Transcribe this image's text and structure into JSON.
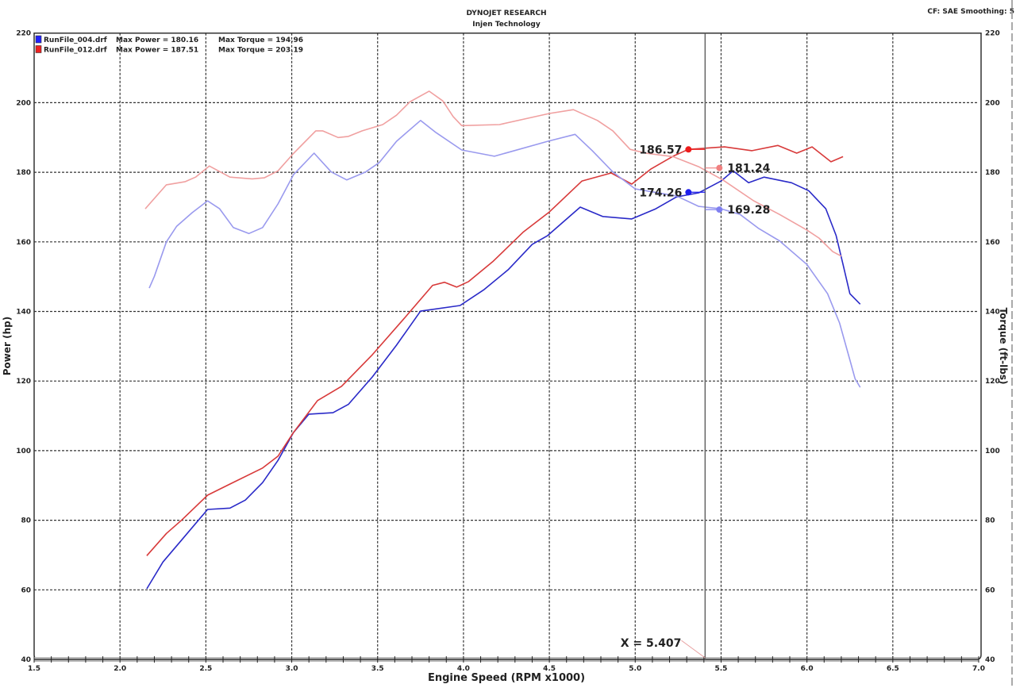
{
  "header": {
    "title": "DYNOJET RESEARCH",
    "subtitle": "Injen Technology",
    "settings": "CF: SAE  Smoothing: 5"
  },
  "legend": [
    {
      "file": "RunFile_004.drf",
      "power_text": "Max Power = 180.16",
      "torque_text": "Max Torque = 194.96",
      "color": "#2020ff"
    },
    {
      "file": "RunFile_012.drf",
      "power_text": "Max Power = 187.51",
      "torque_text": "Max Torque = 203.19",
      "color": "#ee2020"
    }
  ],
  "cursor": {
    "label": "X = 5.407",
    "x": 5.407
  },
  "chart_data": {
    "type": "line",
    "title": "DYNOJET RESEARCH",
    "subtitle": "Injen Technology",
    "xlabel": "Engine Speed (RPM x1000)",
    "ylabel": "Power (hp)",
    "ylabel_right": "Torque (ft-lbs)",
    "xlim": [
      1.5,
      7.0
    ],
    "ylim": [
      40,
      220
    ],
    "ylim_right": [
      40,
      220
    ],
    "x_ticks": [
      "1.5",
      "2.0",
      "2.5",
      "3.0",
      "3.5",
      "4.0",
      "4.5",
      "5.0",
      "5.5",
      "6.0",
      "6.5",
      "7.0"
    ],
    "y_ticks": [
      "220",
      "200",
      "180",
      "160",
      "140",
      "120",
      "100",
      "80",
      "60",
      "40"
    ],
    "grid": true,
    "legend_position": "top-left",
    "series": [
      {
        "name": "RunFile_004.drf Power",
        "color": "#2a2ac8",
        "axis": "left",
        "points": [
          [
            2.156,
            60.3
          ],
          [
            2.25,
            68
          ],
          [
            2.36,
            74.4
          ],
          [
            2.51,
            83.1
          ],
          [
            2.64,
            83.5
          ],
          [
            2.73,
            85.8
          ],
          [
            2.83,
            90.8
          ],
          [
            2.92,
            97.2
          ],
          [
            3.01,
            105.2
          ],
          [
            3.1,
            110.5
          ],
          [
            3.24,
            110.9
          ],
          [
            3.33,
            113.3
          ],
          [
            3.47,
            121.2
          ],
          [
            3.61,
            130.3
          ],
          [
            3.75,
            140.1
          ],
          [
            3.98,
            141.7
          ],
          [
            4.12,
            146.3
          ],
          [
            4.26,
            152
          ],
          [
            4.4,
            159.3
          ],
          [
            4.49,
            161.8
          ],
          [
            4.68,
            170
          ],
          [
            4.81,
            167.3
          ],
          [
            4.98,
            166.6
          ],
          [
            5.12,
            169.5
          ],
          [
            5.24,
            172.9
          ],
          [
            5.37,
            174.1
          ],
          [
            5.5,
            177.5
          ],
          [
            5.57,
            180.4
          ],
          [
            5.66,
            177
          ],
          [
            5.75,
            178.6
          ],
          [
            5.91,
            177
          ],
          [
            6.01,
            174.7
          ],
          [
            6.11,
            169.5
          ],
          [
            6.17,
            161.8
          ],
          [
            6.21,
            153.5
          ],
          [
            6.25,
            145.1
          ],
          [
            6.31,
            142.1
          ]
        ]
      },
      {
        "name": "RunFile_012.drf Power",
        "color": "#d83a3a",
        "axis": "left",
        "points": [
          [
            2.156,
            69.8
          ],
          [
            2.27,
            76.2
          ],
          [
            2.36,
            80.1
          ],
          [
            2.51,
            87.2
          ],
          [
            2.64,
            90.4
          ],
          [
            2.83,
            95
          ],
          [
            2.92,
            98.4
          ],
          [
            3.01,
            105.2
          ],
          [
            3.15,
            114.4
          ],
          [
            3.29,
            118.5
          ],
          [
            3.47,
            127.6
          ],
          [
            3.66,
            138.3
          ],
          [
            3.82,
            147.5
          ],
          [
            3.89,
            148.4
          ],
          [
            3.96,
            147
          ],
          [
            4.03,
            148.6
          ],
          [
            4.17,
            154.3
          ],
          [
            4.35,
            162.9
          ],
          [
            4.5,
            168.6
          ],
          [
            4.69,
            177.5
          ],
          [
            4.86,
            179.8
          ],
          [
            4.98,
            176.6
          ],
          [
            5.09,
            180.9
          ],
          [
            5.22,
            184.6
          ],
          [
            5.31,
            186.6
          ],
          [
            5.52,
            187.3
          ],
          [
            5.68,
            186.2
          ],
          [
            5.83,
            187.7
          ],
          [
            5.94,
            185.5
          ],
          [
            6.03,
            187.3
          ],
          [
            6.14,
            183
          ],
          [
            6.21,
            184.5
          ]
        ]
      },
      {
        "name": "RunFile_004.drf Torque",
        "color": "#9a9aee",
        "axis": "right",
        "points": [
          [
            2.17,
            146.7
          ],
          [
            2.2,
            150.1
          ],
          [
            2.27,
            160
          ],
          [
            2.33,
            164.5
          ],
          [
            2.42,
            168.4
          ],
          [
            2.51,
            171.8
          ],
          [
            2.58,
            169.5
          ],
          [
            2.66,
            164.1
          ],
          [
            2.75,
            162.4
          ],
          [
            2.83,
            164.1
          ],
          [
            2.92,
            170.9
          ],
          [
            3.01,
            179.3
          ],
          [
            3.13,
            185.5
          ],
          [
            3.23,
            180.1
          ],
          [
            3.32,
            177.8
          ],
          [
            3.43,
            180.1
          ],
          [
            3.51,
            182.8
          ],
          [
            3.61,
            188.9
          ],
          [
            3.75,
            194.9
          ],
          [
            3.84,
            191.4
          ],
          [
            3.99,
            186.4
          ],
          [
            4.18,
            184.6
          ],
          [
            4.49,
            188.9
          ],
          [
            4.65,
            190.9
          ],
          [
            4.75,
            186.2
          ],
          [
            4.87,
            180.1
          ],
          [
            5.0,
            175.2
          ],
          [
            5.24,
            173.2
          ],
          [
            5.37,
            170.2
          ],
          [
            5.5,
            169.5
          ],
          [
            5.61,
            167.9
          ],
          [
            5.72,
            163.8
          ],
          [
            5.84,
            160.3
          ],
          [
            6.0,
            153.5
          ],
          [
            6.12,
            145.1
          ],
          [
            6.19,
            136.7
          ],
          [
            6.25,
            126.1
          ],
          [
            6.28,
            120.7
          ],
          [
            6.31,
            118.2
          ]
        ]
      },
      {
        "name": "RunFile_012.drf Torque",
        "color": "#f0a0a0",
        "axis": "right",
        "points": [
          [
            2.147,
            169.5
          ],
          [
            2.27,
            176.4
          ],
          [
            2.38,
            177.3
          ],
          [
            2.44,
            178.6
          ],
          [
            2.52,
            181.8
          ],
          [
            2.64,
            178.6
          ],
          [
            2.77,
            178.1
          ],
          [
            2.84,
            178.4
          ],
          [
            2.92,
            180.4
          ],
          [
            3.01,
            185.4
          ],
          [
            3.14,
            191.9
          ],
          [
            3.18,
            191.9
          ],
          [
            3.27,
            190
          ],
          [
            3.33,
            190.3
          ],
          [
            3.41,
            191.9
          ],
          [
            3.53,
            193.7
          ],
          [
            3.61,
            196.4
          ],
          [
            3.69,
            200.3
          ],
          [
            3.8,
            203.3
          ],
          [
            3.88,
            200.5
          ],
          [
            3.94,
            196
          ],
          [
            3.99,
            193.4
          ],
          [
            4.21,
            193.7
          ],
          [
            4.5,
            196.9
          ],
          [
            4.64,
            198
          ],
          [
            4.78,
            194.9
          ],
          [
            4.87,
            191.9
          ],
          [
            4.97,
            186.6
          ],
          [
            5.06,
            185.5
          ],
          [
            5.22,
            184.5
          ],
          [
            5.37,
            181.6
          ],
          [
            5.51,
            177.8
          ],
          [
            5.69,
            171.8
          ],
          [
            5.84,
            167.9
          ],
          [
            6.0,
            163.4
          ],
          [
            6.07,
            161.1
          ],
          [
            6.15,
            157.2
          ],
          [
            6.2,
            155.9
          ]
        ]
      }
    ],
    "markers": [
      {
        "label": "186.57",
        "x": 5.31,
        "y": 186.57,
        "color": "#ee1c1c",
        "side": "left"
      },
      {
        "label": "174.26",
        "x": 5.31,
        "y": 174.26,
        "color": "#1c1cee",
        "side": "left"
      },
      {
        "label": "181.24",
        "x": 5.49,
        "y": 181.24,
        "color": "#f08080",
        "side": "right"
      },
      {
        "label": "169.28",
        "x": 5.49,
        "y": 169.28,
        "color": "#8080f0",
        "side": "right"
      }
    ]
  }
}
